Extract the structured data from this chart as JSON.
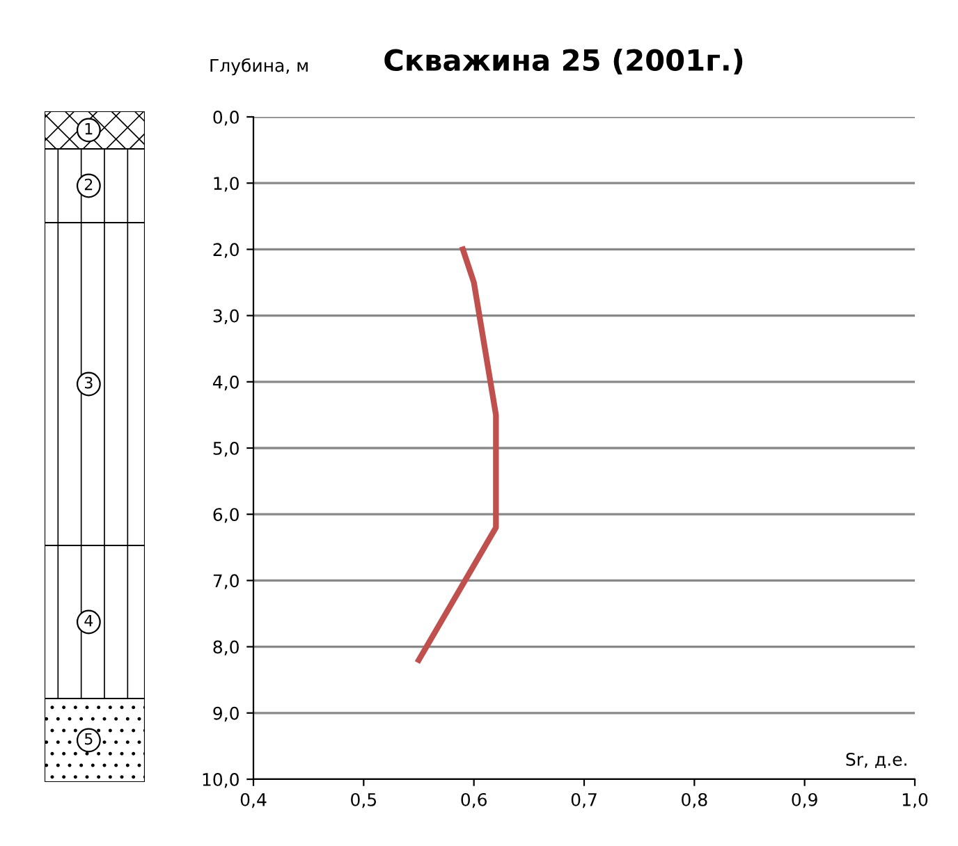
{
  "chart_data": {
    "type": "line",
    "title": "Скважина 25 (2001г.)",
    "xlabel": "Sr, д.е.",
    "ylabel": "Глубина, м",
    "x": [
      0.59,
      0.6,
      0.62,
      0.62,
      0.55
    ],
    "series": [
      {
        "color": "#c0504d",
        "values": [
          2.0,
          2.5,
          4.5,
          6.2,
          8.2
        ]
      }
    ],
    "xlim": [
      0.4,
      1.0
    ],
    "ylim": [
      10.0,
      0.0
    ],
    "xticks": [
      {
        "value": 0.4,
        "label": "0,4"
      },
      {
        "value": 0.5,
        "label": "0,5"
      },
      {
        "value": 0.6,
        "label": "0,6"
      },
      {
        "value": 0.7,
        "label": "0,7"
      },
      {
        "value": 0.8,
        "label": "0,8"
      },
      {
        "value": 0.9,
        "label": "0,9"
      },
      {
        "value": 1.0,
        "label": "1,0"
      }
    ],
    "yticks": [
      {
        "value": 0,
        "label": "0,0"
      },
      {
        "value": 1,
        "label": "1,0"
      },
      {
        "value": 2,
        "label": "2,0"
      },
      {
        "value": 3,
        "label": "3,0"
      },
      {
        "value": 4,
        "label": "4,0"
      },
      {
        "value": 5,
        "label": "5,0"
      },
      {
        "value": 6,
        "label": "6,0"
      },
      {
        "value": 7,
        "label": "7,0"
      },
      {
        "value": 8,
        "label": "8,0"
      },
      {
        "value": 9,
        "label": "9,0"
      },
      {
        "value": 10,
        "label": "10,0"
      }
    ],
    "grid": "y",
    "legend": false,
    "marker": "none",
    "line_style": "solid",
    "annotations": [
      "1",
      "2",
      "3",
      "4",
      "5"
    ]
  }
}
